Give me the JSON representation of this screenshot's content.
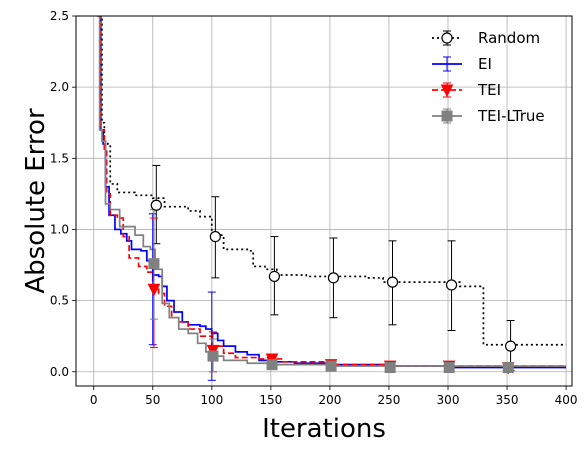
{
  "chart_data": {
    "type": "line",
    "xlabel": "Iterations",
    "ylabel": "Absolute Error",
    "xlim": [
      -15,
      405
    ],
    "ylim": [
      -0.1,
      2.5
    ],
    "xticks": [
      0,
      50,
      100,
      150,
      200,
      250,
      300,
      350,
      400
    ],
    "yticks": [
      0.0,
      0.5,
      1.0,
      1.5,
      2.0,
      2.5
    ],
    "xtick_labels": [
      "0",
      "50",
      "100",
      "150",
      "200",
      "250",
      "300",
      "350",
      "400"
    ],
    "ytick_labels": [
      "0.0",
      "0.5",
      "1.0",
      "1.5",
      "2.0",
      "2.5"
    ],
    "grid": true,
    "legend_position": "top-right",
    "series": [
      {
        "name": "Random",
        "color": "#000000",
        "dash": "dotted",
        "marker": "open-circle",
        "curve": [
          [
            5,
            2.5
          ],
          [
            7,
            1.75
          ],
          [
            9,
            1.62
          ],
          [
            12,
            1.6
          ],
          [
            14,
            1.32
          ],
          [
            20,
            1.26
          ],
          [
            35,
            1.24
          ],
          [
            50,
            1.22
          ],
          [
            60,
            1.16
          ],
          [
            80,
            1.13
          ],
          [
            90,
            1.09
          ],
          [
            100,
            0.96
          ],
          [
            110,
            0.86
          ],
          [
            130,
            0.85
          ],
          [
            135,
            0.74
          ],
          [
            145,
            0.72
          ],
          [
            155,
            0.68
          ],
          [
            180,
            0.67
          ],
          [
            230,
            0.66
          ],
          [
            240,
            0.66
          ],
          [
            245,
            0.63
          ],
          [
            300,
            0.63
          ],
          [
            310,
            0.6
          ],
          [
            325,
            0.6
          ],
          [
            330,
            0.19
          ],
          [
            400,
            0.19
          ]
        ],
        "points": [
          {
            "x": 53,
            "y": 1.17,
            "low": 0.9,
            "high": 1.45
          },
          {
            "x": 103,
            "y": 0.95,
            "low": 0.66,
            "high": 1.23
          },
          {
            "x": 153,
            "y": 0.67,
            "low": 0.4,
            "high": 0.95
          },
          {
            "x": 203,
            "y": 0.66,
            "low": 0.38,
            "high": 0.94
          },
          {
            "x": 253,
            "y": 0.63,
            "low": 0.33,
            "high": 0.92
          },
          {
            "x": 303,
            "y": 0.61,
            "low": 0.29,
            "high": 0.92
          },
          {
            "x": 353,
            "y": 0.18,
            "low": 0.01,
            "high": 0.36
          }
        ]
      },
      {
        "name": "EI",
        "color": "#0000ff",
        "dash": "solid",
        "marker": "none",
        "curve": [
          [
            3,
            2.5
          ],
          [
            6,
            1.7
          ],
          [
            8,
            1.6
          ],
          [
            10,
            1.3
          ],
          [
            13,
            1.1
          ],
          [
            18,
            1.0
          ],
          [
            23,
            0.97
          ],
          [
            28,
            0.92
          ],
          [
            32,
            0.86
          ],
          [
            40,
            0.85
          ],
          [
            45,
            0.78
          ],
          [
            50,
            0.68
          ],
          [
            55,
            0.67
          ],
          [
            58,
            0.6
          ],
          [
            62,
            0.5
          ],
          [
            68,
            0.42
          ],
          [
            75,
            0.35
          ],
          [
            80,
            0.33
          ],
          [
            90,
            0.32
          ],
          [
            95,
            0.3
          ],
          [
            100,
            0.27
          ],
          [
            105,
            0.22
          ],
          [
            110,
            0.18
          ],
          [
            120,
            0.14
          ],
          [
            130,
            0.12
          ],
          [
            140,
            0.08
          ],
          [
            150,
            0.07
          ],
          [
            170,
            0.06
          ],
          [
            200,
            0.05
          ],
          [
            250,
            0.04
          ],
          [
            300,
            0.03
          ],
          [
            350,
            0.03
          ],
          [
            400,
            0.03
          ]
        ],
        "points": [
          {
            "x": 50,
            "y": 0.65,
            "low": 0.19,
            "high": 1.11
          },
          {
            "x": 100,
            "y": 0.25,
            "low": -0.06,
            "high": 0.56
          },
          {
            "x": 150,
            "y": 0.07,
            "low": 0.04,
            "high": 0.1
          },
          {
            "x": 200,
            "y": 0.05,
            "low": 0.03,
            "high": 0.07
          },
          {
            "x": 250,
            "y": 0.04,
            "low": 0.03,
            "high": 0.05
          },
          {
            "x": 300,
            "y": 0.03,
            "low": 0.02,
            "high": 0.04
          },
          {
            "x": 350,
            "y": 0.03,
            "low": 0.02,
            "high": 0.04
          }
        ]
      },
      {
        "name": "TEI",
        "color": "#ff0000",
        "dash": "dashed",
        "marker": "triangle-down",
        "curve": [
          [
            3,
            2.5
          ],
          [
            6,
            1.7
          ],
          [
            9,
            1.55
          ],
          [
            11,
            1.25
          ],
          [
            14,
            1.1
          ],
          [
            20,
            1.08
          ],
          [
            25,
            0.95
          ],
          [
            30,
            0.8
          ],
          [
            38,
            0.74
          ],
          [
            45,
            0.7
          ],
          [
            50,
            0.58
          ],
          [
            55,
            0.55
          ],
          [
            60,
            0.46
          ],
          [
            66,
            0.38
          ],
          [
            72,
            0.35
          ],
          [
            80,
            0.3
          ],
          [
            90,
            0.25
          ],
          [
            100,
            0.18
          ],
          [
            110,
            0.13
          ],
          [
            120,
            0.1
          ],
          [
            140,
            0.09
          ],
          [
            160,
            0.07
          ],
          [
            200,
            0.05
          ],
          [
            250,
            0.04
          ],
          [
            300,
            0.04
          ],
          [
            400,
            0.04
          ]
        ],
        "points": [
          {
            "x": 51,
            "y": 0.58,
            "low": 0.17,
            "high": 1.08
          },
          {
            "x": 101,
            "y": 0.15,
            "low": 0.0,
            "high": 0.28
          },
          {
            "x": 151,
            "y": 0.09,
            "low": 0.06,
            "high": 0.12
          },
          {
            "x": 201,
            "y": 0.05,
            "low": 0.03,
            "high": 0.07
          },
          {
            "x": 251,
            "y": 0.04,
            "low": 0.03,
            "high": 0.05
          },
          {
            "x": 301,
            "y": 0.04,
            "low": 0.03,
            "high": 0.05
          },
          {
            "x": 351,
            "y": 0.03,
            "low": 0.02,
            "high": 0.04
          }
        ]
      },
      {
        "name": "TEI-LTrue",
        "color": "#808080",
        "dash": "solid",
        "marker": "square",
        "curve": [
          [
            3,
            2.5
          ],
          [
            5,
            1.7
          ],
          [
            7,
            1.62
          ],
          [
            10,
            1.18
          ],
          [
            14,
            1.14
          ],
          [
            22,
            1.02
          ],
          [
            35,
            0.96
          ],
          [
            42,
            0.88
          ],
          [
            48,
            0.86
          ],
          [
            52,
            0.72
          ],
          [
            58,
            0.48
          ],
          [
            64,
            0.38
          ],
          [
            72,
            0.3
          ],
          [
            80,
            0.27
          ],
          [
            88,
            0.2
          ],
          [
            95,
            0.14
          ],
          [
            100,
            0.11
          ],
          [
            110,
            0.08
          ],
          [
            130,
            0.06
          ],
          [
            150,
            0.05
          ],
          [
            200,
            0.04
          ],
          [
            250,
            0.04
          ],
          [
            300,
            0.04
          ],
          [
            400,
            0.04
          ]
        ],
        "points": [
          {
            "x": 51,
            "y": 0.76,
            "low": 0.37,
            "high": 1.14
          },
          {
            "x": 101,
            "y": 0.11,
            "low": 0.0,
            "high": 0.23
          },
          {
            "x": 151,
            "y": 0.05,
            "low": 0.03,
            "high": 0.07
          },
          {
            "x": 201,
            "y": 0.04,
            "low": 0.03,
            "high": 0.05
          },
          {
            "x": 251,
            "y": 0.03,
            "low": 0.02,
            "high": 0.04
          },
          {
            "x": 301,
            "y": 0.03,
            "low": 0.02,
            "high": 0.04
          },
          {
            "x": 351,
            "y": 0.03,
            "low": 0.02,
            "high": 0.04
          }
        ]
      }
    ]
  }
}
